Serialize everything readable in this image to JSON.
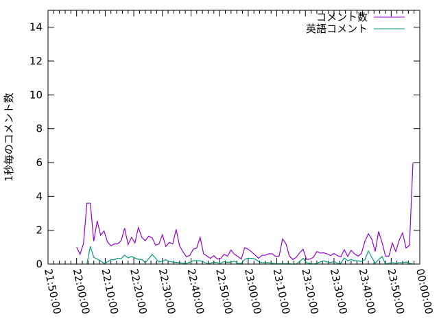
{
  "chart_data": {
    "type": "line",
    "title": "",
    "xlabel": "",
    "ylabel": "1秒毎のコメント数",
    "ylim": [
      0,
      15
    ],
    "yticks": [
      "0",
      "2",
      "4",
      "6",
      "8",
      "10",
      "12",
      "14"
    ],
    "xlim": [
      "21:50:00",
      "00:00:00"
    ],
    "xticks": [
      "21:50:00",
      "22:00:00",
      "22:10:00",
      "22:20:00",
      "22:30:00",
      "22:40:00",
      "22:50:00",
      "23:00:00",
      "23:10:00",
      "23:20:00",
      "23:30:00",
      "23:40:00",
      "23:50:00",
      "00:00:00"
    ],
    "grid": false,
    "legend_position": "top-right",
    "x": [
      "22:00:00",
      "22:01:12",
      "22:02:24",
      "22:03:36",
      "22:04:48",
      "22:06:00",
      "22:07:12",
      "22:08:24",
      "22:09:36",
      "22:10:48",
      "22:12:00",
      "22:13:12",
      "22:14:24",
      "22:15:36",
      "22:16:48",
      "22:18:00",
      "22:19:12",
      "22:20:24",
      "22:21:36",
      "22:22:48",
      "22:24:00",
      "22:25:12",
      "22:26:24",
      "22:27:36",
      "22:28:48",
      "22:30:00",
      "22:31:12",
      "22:32:24",
      "22:33:36",
      "22:34:48",
      "22:36:00",
      "22:37:12",
      "22:38:24",
      "22:39:36",
      "22:40:48",
      "22:42:00",
      "22:43:12",
      "22:44:24",
      "22:45:36",
      "22:46:48",
      "22:48:00",
      "22:49:12",
      "22:50:24",
      "22:51:36",
      "22:52:48",
      "22:54:00",
      "22:55:12",
      "22:56:24",
      "22:57:36",
      "22:58:48",
      "23:00:00",
      "23:01:12",
      "23:02:24",
      "23:03:36",
      "23:04:48",
      "23:06:00",
      "23:07:12",
      "23:08:24",
      "23:09:36",
      "23:10:48",
      "23:12:00",
      "23:13:12",
      "23:14:24",
      "23:15:36",
      "23:16:48",
      "23:18:00",
      "23:19:12",
      "23:20:24",
      "23:21:36",
      "23:22:48",
      "23:24:00",
      "23:25:12",
      "23:26:24",
      "23:27:36",
      "23:28:48",
      "23:30:00",
      "23:31:12",
      "23:32:24",
      "23:33:36",
      "23:34:48",
      "23:36:00",
      "23:37:12",
      "23:38:24",
      "23:39:36",
      "23:40:48",
      "23:42:00",
      "23:43:12",
      "23:44:24",
      "23:45:36",
      "23:46:48",
      "23:48:00",
      "23:49:12",
      "23:50:24",
      "23:51:36",
      "23:52:48",
      "23:54:00",
      "23:55:12",
      "23:56:24",
      "23:57:36"
    ],
    "series": [
      {
        "name": "コメント数",
        "color": "#9400d3",
        "values": [
          1.0,
          0.58,
          1.21,
          3.6,
          3.6,
          1.35,
          2.55,
          1.71,
          1.96,
          1.31,
          1.08,
          1.19,
          1.19,
          1.39,
          2.12,
          1.15,
          1.58,
          1.25,
          2.16,
          1.58,
          1.38,
          1.65,
          1.55,
          1.12,
          1.19,
          1.73,
          1.04,
          1.28,
          1.19,
          2.06,
          1.08,
          0.72,
          0.43,
          0.52,
          0.88,
          0.95,
          1.58,
          0.61,
          0.47,
          0.34,
          0.5,
          0.3,
          0.34,
          0.58,
          0.47,
          0.83,
          0.58,
          0.45,
          0.3,
          0.97,
          0.88,
          0.72,
          0.54,
          0.34,
          0.52,
          0.52,
          0.61,
          0.61,
          0.45,
          0.47,
          1.48,
          1.21,
          0.47,
          0.27,
          0.4,
          0.67,
          0.88,
          0.27,
          0.3,
          0.4,
          0.74,
          0.65,
          0.67,
          0.61,
          0.5,
          0.63,
          0.5,
          0.43,
          0.85,
          0.45,
          0.81,
          0.61,
          0.47,
          0.63,
          1.34,
          1.79,
          1.48,
          0.74,
          1.93,
          1.28,
          0.47,
          0.47,
          1.25,
          0.74,
          1.42,
          1.85,
          0.95,
          1.12,
          6.0
        ]
      },
      {
        "name": "英語コメント",
        "color": "#009e73",
        "values": [
          null,
          null,
          null,
          0,
          1.04,
          0.4,
          0.3,
          0.19,
          0.04,
          0.12,
          0.26,
          0.26,
          0.35,
          0.32,
          0.53,
          0.36,
          0.45,
          0.36,
          0.28,
          0.28,
          0.08,
          0.32,
          0.57,
          0.35,
          0.12,
          0.16,
          0.26,
          0.15,
          0.12,
          0.1,
          0.08,
          0.05,
          0.05,
          0.1,
          0.2,
          0.2,
          0.2,
          0.12,
          0.05,
          0.05,
          0.12,
          0.08,
          0.05,
          0.15,
          0.1,
          0.12,
          0.18,
          0.05,
          0.04,
          0.28,
          0.35,
          0.34,
          0.3,
          0.16,
          0.08,
          0.08,
          0.08,
          0.05,
          0.02,
          0.02,
          0.02,
          0.02,
          0.02,
          0,
          0,
          0.15,
          0.34,
          0.08,
          0.04,
          0,
          0.04,
          0.12,
          0.19,
          0.12,
          0.08,
          0.16,
          0.05,
          0.04,
          0.37,
          0.19,
          0.28,
          0.2,
          0.2,
          0.16,
          0.26,
          0.78,
          0.4,
          0.05,
          0.26,
          0.45,
          0,
          0.05,
          0.08,
          0.05,
          0.08,
          0.08,
          0.12,
          0.05,
          0
        ]
      }
    ]
  }
}
